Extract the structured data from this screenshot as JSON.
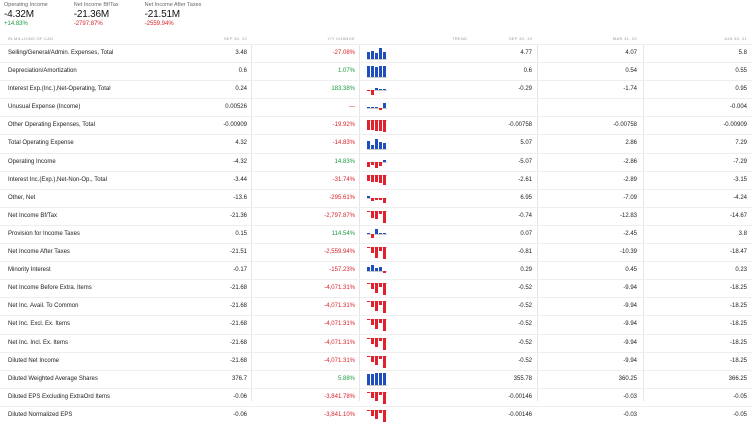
{
  "summary": [
    {
      "label": "Operating Income",
      "value": "-4.32M",
      "change": "+14.83%",
      "dir": "pos"
    },
    {
      "label": "Net Income Bf/Tax",
      "value": "-21.36M",
      "change": "-2797.87%",
      "dir": "neg"
    },
    {
      "label": "Net Income After Taxes",
      "value": "-21.51M",
      "change": "-2559.94%",
      "dir": "neg"
    }
  ],
  "table": {
    "headers": {
      "label": "IN MILLIONS OF CAD",
      "current": "SEP 30, 22",
      "change": "Y/Y CHANGE",
      "trend": "TREND",
      "d1": "SEP 30, 19",
      "d2": "MAR 31, 20",
      "d3": "JUN 30, 21"
    },
    "rows": [
      {
        "label": "Selling/General/Admin. Expenses, Total",
        "current": "3.48",
        "change": "-27.08%",
        "dir": "neg",
        "d1": "4.77",
        "d2": "4.07",
        "d3": "5.8",
        "trend": [
          0.6,
          0.7,
          0.5,
          0.9,
          0.6
        ]
      },
      {
        "label": "Depreciation/Amortization",
        "current": "0.6",
        "change": "1.07%",
        "dir": "pos",
        "d1": "0.6",
        "d2": "0.54",
        "d3": "0.55",
        "trend": [
          0.9,
          0.9,
          0.8,
          0.9,
          0.9
        ]
      },
      {
        "label": "Interest Exp.(Inc.),Net-Operating, Total",
        "current": "0.24",
        "change": "183.38%",
        "dir": "pos",
        "d1": "-0.29",
        "d2": "-1.74",
        "d3": "0.95",
        "trend": [
          -0.1,
          -0.8,
          0.3,
          0.1,
          0.1
        ]
      },
      {
        "label": "Unusual Expense (Income)",
        "current": "0.00526",
        "change": "—",
        "dir": "neg",
        "d1": "",
        "d2": "",
        "d3": "-0.004",
        "trend": [
          0,
          0,
          0,
          -0.3,
          0.7
        ]
      },
      {
        "label": "Other Operating Expenses, Total",
        "current": "-0.00909",
        "change": "-19.92%",
        "dir": "neg",
        "d1": "-0.00758",
        "d2": "-0.00758",
        "d3": "-0.00909",
        "trend": [
          -0.8,
          -0.8,
          -0.9,
          -0.9,
          -1.0
        ]
      },
      {
        "label": "Total Operating Expense",
        "current": "4.32",
        "change": "-14.83%",
        "dir": "neg",
        "d1": "5.07",
        "d2": "2.86",
        "d3": "7.29",
        "trend": [
          0.7,
          0.4,
          0.9,
          0.6,
          0.5
        ]
      },
      {
        "label": "Operating Income",
        "current": "-4.32",
        "change": "14.83%",
        "dir": "pos",
        "d1": "-5.07",
        "d2": "-2.86",
        "d3": "-7.29",
        "trend": [
          -0.7,
          -0.4,
          -0.9,
          -0.6,
          0.3
        ]
      },
      {
        "label": "Interest Inc.(Exp.),Net-Non-Op., Total",
        "current": "-3.44",
        "change": "-31.74%",
        "dir": "neg",
        "d1": "-2.61",
        "d2": "-2.89",
        "d3": "-3.15",
        "trend": [
          -0.5,
          -0.6,
          -0.6,
          -0.7,
          -0.9
        ]
      },
      {
        "label": "Other, Net",
        "current": "-13.6",
        "change": "-295.61%",
        "dir": "neg",
        "d1": "6.95",
        "d2": "-7.09",
        "d3": "-4.24",
        "trend": [
          0.4,
          -0.4,
          -0.2,
          -0.3,
          -0.8
        ]
      },
      {
        "label": "Net Income Bf/Tax",
        "current": "-21.36",
        "change": "-2,797.87%",
        "dir": "neg",
        "d1": "-0.74",
        "d2": "-12.83",
        "d3": "-14.67",
        "trend": [
          -0.05,
          -0.6,
          -0.7,
          -0.3,
          -1.0
        ]
      },
      {
        "label": "Provision for Income Taxes",
        "current": "0.15",
        "change": "114.54%",
        "dir": "pos",
        "d1": "0.07",
        "d2": "-2.45",
        "d3": "3.8",
        "trend": [
          0.05,
          -0.6,
          0.9,
          0.1,
          0.1
        ]
      },
      {
        "label": "Net Income After Taxes",
        "current": "-21.51",
        "change": "-2,559.94%",
        "dir": "neg",
        "d1": "-0.81",
        "d2": "-10.39",
        "d3": "-18.47",
        "trend": [
          -0.05,
          -0.5,
          -0.9,
          -0.3,
          -1.0
        ]
      },
      {
        "label": "Minority Interest",
        "current": "-0.17",
        "change": "-157.23%",
        "dir": "neg",
        "d1": "0.29",
        "d2": "0.45",
        "d3": "0.23",
        "trend": [
          0.5,
          0.8,
          0.4,
          0.6,
          -0.4
        ]
      },
      {
        "label": "Net Income Before Extra. Items",
        "current": "-21.68",
        "change": "-4,071.31%",
        "dir": "neg",
        "d1": "-0.52",
        "d2": "-9.94",
        "d3": "-18.25",
        "trend": [
          -0.05,
          -0.5,
          -0.8,
          -0.3,
          -1.0
        ]
      },
      {
        "label": "Net Inc. Avail. To Common",
        "current": "-21.68",
        "change": "-4,071.31%",
        "dir": "neg",
        "d1": "-0.52",
        "d2": "-9.94",
        "d3": "-18.25",
        "trend": [
          -0.05,
          -0.5,
          -0.8,
          -0.3,
          -1.0
        ]
      },
      {
        "label": "Net Inc. Excl. Ex. Items",
        "current": "-21.68",
        "change": "-4,071.31%",
        "dir": "neg",
        "d1": "-0.52",
        "d2": "-9.94",
        "d3": "-18.25",
        "trend": [
          -0.05,
          -0.5,
          -0.8,
          -0.3,
          -1.0
        ]
      },
      {
        "label": "Net Inc. Incl. Ex. Items",
        "current": "-21.68",
        "change": "-4,071.31%",
        "dir": "neg",
        "d1": "-0.52",
        "d2": "-9.94",
        "d3": "-18.25",
        "trend": [
          -0.05,
          -0.5,
          -0.8,
          -0.3,
          -1.0
        ]
      },
      {
        "label": "Diluted Net Income",
        "current": "-21.68",
        "change": "-4,071.31%",
        "dir": "neg",
        "d1": "-0.52",
        "d2": "-9.94",
        "d3": "-18.25",
        "trend": [
          -0.05,
          -0.5,
          -0.8,
          -0.3,
          -1.0
        ]
      },
      {
        "label": "Diluted Weighted Average Shares",
        "current": "376.7",
        "change": "5.88%",
        "dir": "pos",
        "d1": "355.78",
        "d2": "360.25",
        "d3": "366.25",
        "trend": [
          0.9,
          0.9,
          0.95,
          0.95,
          1.0
        ]
      },
      {
        "label": "Diluted EPS Excluding ExtraOrd Items",
        "current": "-0.06",
        "change": "-3,841.78%",
        "dir": "neg",
        "d1": "-0.00146",
        "d2": "-0.03",
        "d3": "-0.05",
        "trend": [
          -0.05,
          -0.5,
          -0.8,
          -0.3,
          -1.0
        ]
      },
      {
        "label": "Diluted Normalized EPS",
        "current": "-0.06",
        "change": "-3,841.10%",
        "dir": "neg",
        "d1": "-0.00146",
        "d2": "-0.03",
        "d3": "-0.05",
        "trend": [
          -0.05,
          -0.5,
          -0.8,
          -0.3,
          -1.0
        ]
      }
    ]
  },
  "colors": {
    "positive": "#1a9c3e",
    "negative": "#d9222a",
    "bar_up": "#1f4fbf",
    "bar_down": "#e0222e"
  }
}
